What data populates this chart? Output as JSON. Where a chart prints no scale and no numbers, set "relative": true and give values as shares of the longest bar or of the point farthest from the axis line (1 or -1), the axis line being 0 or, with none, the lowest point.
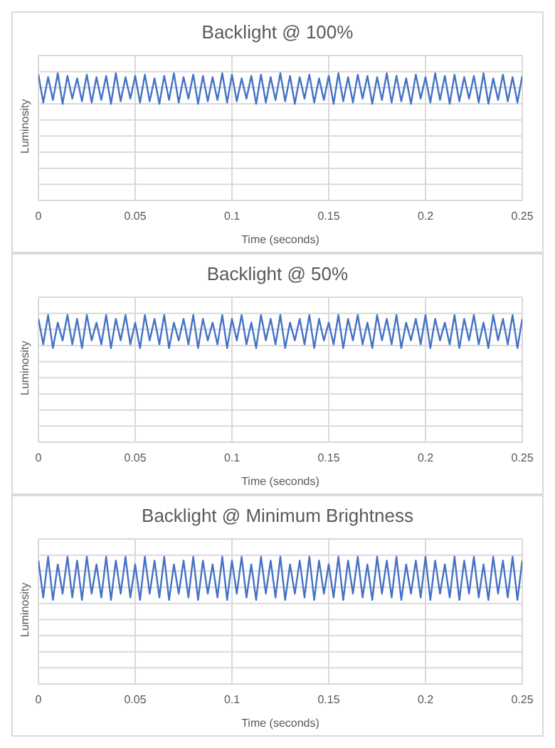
{
  "chart_data": [
    {
      "type": "line",
      "title": "Backlight @ 100%",
      "xlabel": "Time (seconds)",
      "ylabel": "Luminosity",
      "relative": true,
      "grid": true,
      "legend": false,
      "marker": "none",
      "line_style": "solid",
      "xlim": [
        0,
        0.25
      ],
      "xticks": [
        0,
        0.05,
        0.1,
        0.15,
        0.2,
        0.25
      ],
      "x": [
        0,
        0.0025,
        0.005,
        0.0075,
        0.01,
        0.0125,
        0.015,
        0.0175,
        0.02,
        0.0225,
        0.025,
        0.0275,
        0.03,
        0.0325,
        0.035,
        0.0375,
        0.04,
        0.0425,
        0.045,
        0.0475,
        0.05,
        0.0525,
        0.055,
        0.0575,
        0.06,
        0.0625,
        0.065,
        0.0675,
        0.07,
        0.0725,
        0.075,
        0.0775,
        0.08,
        0.0825,
        0.085,
        0.0875,
        0.09,
        0.0925,
        0.095,
        0.0975,
        0.1,
        0.1025,
        0.105,
        0.1075,
        0.11,
        0.1125,
        0.115,
        0.1175,
        0.12,
        0.1225,
        0.125,
        0.1275,
        0.13,
        0.1325,
        0.135,
        0.1375,
        0.14,
        0.1425,
        0.145,
        0.1475,
        0.15,
        0.1525,
        0.155,
        0.1575,
        0.16,
        0.1625,
        0.165,
        0.1675,
        0.17,
        0.1725,
        0.175,
        0.1775,
        0.18,
        0.1825,
        0.185,
        0.1875,
        0.19,
        0.1925,
        0.195,
        0.1975,
        0.2,
        0.2025,
        0.205,
        0.2075,
        0.21,
        0.2125,
        0.215,
        0.2175,
        0.22,
        0.2225,
        0.225,
        0.2275,
        0.23,
        0.2325,
        0.235,
        0.2375,
        0.24,
        0.2425,
        0.245,
        0.2475,
        0.25
      ],
      "series": [
        {
          "color": "#4472c4",
          "values": [
            0.99,
            0.77,
            0.97,
            0.79,
            1,
            0.76,
            0.98,
            0.8,
            0.96,
            0.78,
            0.99,
            0.77,
            0.97,
            0.79,
            0.98,
            0.76,
            1,
            0.78,
            0.97,
            0.8,
            0.98,
            0.77,
            0.99,
            0.78,
            0.96,
            0.76,
            0.98,
            0.79,
            1,
            0.77,
            0.97,
            0.8,
            0.99,
            0.76,
            0.98,
            0.78,
            0.97,
            0.79,
            1,
            0.77,
            0.99,
            0.78,
            0.96,
            0.8,
            0.98,
            0.76,
            0.99,
            0.77,
            0.97,
            0.79,
            1,
            0.78,
            0.98,
            0.76,
            0.97,
            0.8,
            0.99,
            0.77,
            0.96,
            0.79,
            0.98,
            0.76,
            1,
            0.78,
            0.97,
            0.77,
            0.99,
            0.8,
            0.98,
            0.76,
            0.97,
            0.79,
            1,
            0.77,
            0.98,
            0.78,
            0.96,
            0.76,
            0.99,
            0.8,
            0.97,
            0.77,
            1,
            0.79,
            0.98,
            0.76,
            0.99,
            0.78,
            0.97,
            0.8,
            0.98,
            0.77,
            1,
            0.76,
            0.96,
            0.79,
            0.99,
            0.78,
            0.97,
            0.77,
            0.98
          ]
        }
      ]
    },
    {
      "type": "line",
      "title": "Backlight @ 50%",
      "xlabel": "Time (seconds)",
      "ylabel": "Luminosity",
      "relative": true,
      "grid": true,
      "legend": false,
      "marker": "none",
      "line_style": "solid",
      "xlim": [
        0,
        0.25
      ],
      "xticks": [
        0,
        0.05,
        0.1,
        0.15,
        0.2,
        0.25
      ],
      "x": [
        0,
        0.0025,
        0.005,
        0.0075,
        0.01,
        0.0125,
        0.015,
        0.0175,
        0.02,
        0.0225,
        0.025,
        0.0275,
        0.03,
        0.0325,
        0.035,
        0.0375,
        0.04,
        0.0425,
        0.045,
        0.0475,
        0.05,
        0.0525,
        0.055,
        0.0575,
        0.06,
        0.0625,
        0.065,
        0.0675,
        0.07,
        0.0725,
        0.075,
        0.0775,
        0.08,
        0.0825,
        0.085,
        0.0875,
        0.09,
        0.0925,
        0.095,
        0.0975,
        0.1,
        0.1025,
        0.105,
        0.1075,
        0.11,
        0.1125,
        0.115,
        0.1175,
        0.12,
        0.1225,
        0.125,
        0.1275,
        0.13,
        0.1325,
        0.135,
        0.1375,
        0.14,
        0.1425,
        0.145,
        0.1475,
        0.15,
        0.1525,
        0.155,
        0.1575,
        0.16,
        0.1625,
        0.165,
        0.1675,
        0.17,
        0.1725,
        0.175,
        0.1775,
        0.18,
        0.1825,
        0.185,
        0.1875,
        0.19,
        0.1925,
        0.195,
        0.1975,
        0.2,
        0.2025,
        0.205,
        0.2075,
        0.21,
        0.2125,
        0.215,
        0.2175,
        0.22,
        0.2225,
        0.225,
        0.2275,
        0.23,
        0.2325,
        0.235,
        0.2375,
        0.24,
        0.2425,
        0.245,
        0.2475,
        0.25
      ],
      "series": [
        {
          "color": "#4472c4",
          "values": [
            0.97,
            0.77,
            1,
            0.74,
            0.94,
            0.8,
            1,
            0.77,
            0.97,
            0.74,
            1,
            0.8,
            0.94,
            0.77,
            1,
            0.74,
            0.97,
            0.8,
            1,
            0.77,
            0.94,
            0.74,
            1,
            0.8,
            0.97,
            0.77,
            1,
            0.74,
            0.94,
            0.8,
            0.97,
            0.77,
            1,
            0.74,
            0.97,
            0.8,
            0.94,
            0.77,
            1,
            0.74,
            0.97,
            0.8,
            1,
            0.77,
            0.94,
            0.74,
            1,
            0.8,
            0.97,
            0.77,
            1,
            0.74,
            0.94,
            0.8,
            0.97,
            0.77,
            1,
            0.74,
            0.97,
            0.8,
            0.94,
            0.77,
            1,
            0.74,
            0.97,
            0.8,
            1,
            0.77,
            0.94,
            0.74,
            1,
            0.8,
            0.97,
            0.77,
            1,
            0.74,
            0.94,
            0.8,
            0.97,
            0.77,
            1,
            0.74,
            0.97,
            0.8,
            0.94,
            0.77,
            1,
            0.74,
            0.97,
            0.8,
            1,
            0.77,
            0.94,
            0.74,
            1,
            0.8,
            0.97,
            0.77,
            1,
            0.74,
            0.97
          ]
        }
      ]
    },
    {
      "type": "line",
      "title": "Backlight @ Minimum Brightness",
      "xlabel": "Time (seconds)",
      "ylabel": "Luminosity",
      "relative": true,
      "grid": true,
      "legend": false,
      "marker": "none",
      "line_style": "solid",
      "xlim": [
        0,
        0.25
      ],
      "xticks": [
        0,
        0.05,
        0.1,
        0.15,
        0.2,
        0.25
      ],
      "x": [
        0,
        0.0025,
        0.005,
        0.0075,
        0.01,
        0.0125,
        0.015,
        0.0175,
        0.02,
        0.0225,
        0.025,
        0.0275,
        0.03,
        0.0325,
        0.035,
        0.0375,
        0.04,
        0.0425,
        0.045,
        0.0475,
        0.05,
        0.0525,
        0.055,
        0.0575,
        0.06,
        0.0625,
        0.065,
        0.0675,
        0.07,
        0.0725,
        0.075,
        0.0775,
        0.08,
        0.0825,
        0.085,
        0.0875,
        0.09,
        0.0925,
        0.095,
        0.0975,
        0.1,
        0.1025,
        0.105,
        0.1075,
        0.11,
        0.1125,
        0.115,
        0.1175,
        0.12,
        0.1225,
        0.125,
        0.1275,
        0.13,
        0.1325,
        0.135,
        0.1375,
        0.14,
        0.1425,
        0.145,
        0.1475,
        0.15,
        0.1525,
        0.155,
        0.1575,
        0.16,
        0.1625,
        0.165,
        0.1675,
        0.17,
        0.1725,
        0.175,
        0.1775,
        0.18,
        0.1825,
        0.185,
        0.1875,
        0.19,
        0.1925,
        0.195,
        0.1975,
        0.2,
        0.2025,
        0.205,
        0.2075,
        0.21,
        0.2125,
        0.215,
        0.2175,
        0.22,
        0.2225,
        0.225,
        0.2275,
        0.23,
        0.2325,
        0.235,
        0.2375,
        0.24,
        0.2425,
        0.245,
        0.2475,
        0.25
      ],
      "series": [
        {
          "color": "#4472c4",
          "values": [
            0.97,
            0.68,
            1,
            0.66,
            0.94,
            0.71,
            1,
            0.68,
            0.97,
            0.66,
            1,
            0.71,
            0.94,
            0.68,
            1,
            0.66,
            0.97,
            0.71,
            1,
            0.68,
            0.94,
            0.66,
            1,
            0.71,
            0.97,
            0.68,
            1,
            0.66,
            0.94,
            0.71,
            0.97,
            0.68,
            1,
            0.66,
            0.97,
            0.71,
            0.94,
            0.68,
            1,
            0.66,
            0.97,
            0.71,
            1,
            0.68,
            0.94,
            0.66,
            1,
            0.71,
            0.97,
            0.68,
            1,
            0.66,
            0.94,
            0.71,
            0.97,
            0.68,
            1,
            0.66,
            0.97,
            0.71,
            0.94,
            0.68,
            1,
            0.66,
            0.97,
            0.71,
            1,
            0.68,
            0.94,
            0.66,
            1,
            0.71,
            0.97,
            0.68,
            1,
            0.66,
            0.94,
            0.71,
            0.97,
            0.68,
            1,
            0.66,
            0.97,
            0.71,
            0.94,
            0.68,
            1,
            0.66,
            0.97,
            0.71,
            1,
            0.68,
            0.94,
            0.66,
            1,
            0.71,
            0.97,
            0.68,
            1,
            0.66,
            0.97
          ]
        }
      ]
    }
  ]
}
